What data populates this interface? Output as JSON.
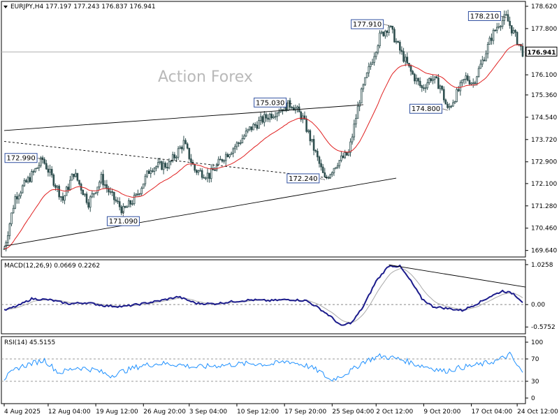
{
  "chart_data": {
    "type": "candlestick",
    "watermark": "Action Forex",
    "main": {
      "header": "EURJPY,H4  177.197 177.243 176.837 176.941",
      "current_price": 176.941,
      "current_price_label": "176.941",
      "ylim": [
        169.4,
        178.8
      ],
      "y_ticks": [
        {
          "value": 178.62,
          "label": "178.620"
        },
        {
          "value": 177.8,
          "label": "177.800"
        },
        {
          "value": 176.98,
          "label": "176.980"
        },
        {
          "value": 176.1,
          "label": "176.100"
        },
        {
          "value": 175.36,
          "label": "175.360"
        },
        {
          "value": 174.54,
          "label": "174.540"
        },
        {
          "value": 173.72,
          "label": "173.720"
        },
        {
          "value": 172.9,
          "label": "172.900"
        },
        {
          "value": 172.1,
          "label": "172.100"
        },
        {
          "value": 171.28,
          "label": "171.280"
        },
        {
          "value": 170.46,
          "label": "170.460"
        },
        {
          "value": 169.64,
          "label": "169.640"
        }
      ],
      "keypoints": [
        [
          0,
          169.7
        ],
        [
          6,
          171.6
        ],
        [
          16,
          172.5
        ],
        [
          21,
          172.99
        ],
        [
          27,
          172.2
        ],
        [
          32,
          171.5
        ],
        [
          38,
          172.5
        ],
        [
          46,
          171.4
        ],
        [
          53,
          172.3
        ],
        [
          58,
          171.7
        ],
        [
          65,
          171.09
        ],
        [
          72,
          171.6
        ],
        [
          80,
          172.7
        ],
        [
          90,
          172.8
        ],
        [
          98,
          173.6
        ],
        [
          104,
          172.6
        ],
        [
          112,
          172.4
        ],
        [
          120,
          173.1
        ],
        [
          128,
          173.6
        ],
        [
          134,
          174.1
        ],
        [
          142,
          174.5
        ],
        [
          152,
          174.9
        ],
        [
          157,
          175.03
        ],
        [
          163,
          174.5
        ],
        [
          170,
          173.2
        ],
        [
          175,
          172.24
        ],
        [
          182,
          172.9
        ],
        [
          188,
          173.2
        ],
        [
          194,
          175.2
        ],
        [
          200,
          176.5
        ],
        [
          205,
          177.5
        ],
        [
          210,
          177.91
        ],
        [
          216,
          177.0
        ],
        [
          222,
          176.2
        ],
        [
          228,
          175.6
        ],
        [
          233,
          176.0
        ],
        [
          238,
          175.7
        ],
        [
          242,
          174.8
        ],
        [
          247,
          175.4
        ],
        [
          252,
          176.0
        ],
        [
          256,
          175.8
        ],
        [
          261,
          176.6
        ],
        [
          266,
          177.5
        ],
        [
          270,
          178.0
        ],
        [
          274,
          178.21
        ],
        [
          279,
          177.5
        ],
        [
          283,
          176.941
        ]
      ],
      "annotations": [
        {
          "label": "172.990",
          "bar": 21,
          "price": 172.99,
          "side": "left"
        },
        {
          "label": "171.090",
          "bar": 65,
          "price": 171.09,
          "side": "below"
        },
        {
          "label": "175.030",
          "bar": 157,
          "price": 175.03,
          "side": "left"
        },
        {
          "label": "172.240",
          "bar": 175,
          "price": 172.24,
          "side": "left"
        },
        {
          "label": "177.910",
          "bar": 210,
          "price": 177.91,
          "side": "left"
        },
        {
          "label": "174.800",
          "bar": 242,
          "price": 174.8,
          "side": "left"
        },
        {
          "label": "178.210",
          "bar": 274,
          "price": 178.21,
          "side": "left"
        }
      ],
      "trendlines": [
        {
          "style": "solid",
          "from": [
            0,
            169.8
          ],
          "to": [
            214,
            172.3
          ]
        },
        {
          "style": "solid",
          "from": [
            0,
            174.05
          ],
          "to": [
            196,
            175.0
          ]
        },
        {
          "style": "dashed",
          "from": [
            0,
            173.65
          ],
          "to": [
            178,
            172.3
          ]
        }
      ]
    },
    "macd": {
      "header": "MACD(12,26,9) 0.0669 0.2262",
      "ylim": [
        -0.75,
        1.15
      ],
      "y_ticks": [
        {
          "value": 1.0258,
          "label": "1.0258"
        },
        {
          "value": 0.0,
          "label": "0.00"
        },
        {
          "value": -0.5752,
          "label": "-0.5752"
        }
      ],
      "keypoints": [
        [
          0,
          -0.15
        ],
        [
          8,
          -0.02
        ],
        [
          15,
          0.15
        ],
        [
          25,
          0.12
        ],
        [
          35,
          0.02
        ],
        [
          45,
          0.05
        ],
        [
          55,
          -0.03
        ],
        [
          65,
          -0.05
        ],
        [
          75,
          0.02
        ],
        [
          85,
          0.1
        ],
        [
          95,
          0.2
        ],
        [
          105,
          0.03
        ],
        [
          115,
          0.02
        ],
        [
          125,
          0.08
        ],
        [
          135,
          0.12
        ],
        [
          145,
          0.1
        ],
        [
          155,
          0.13
        ],
        [
          165,
          0.1
        ],
        [
          172,
          -0.1
        ],
        [
          178,
          -0.3
        ],
        [
          184,
          -0.55
        ],
        [
          190,
          -0.45
        ],
        [
          196,
          -0.05
        ],
        [
          203,
          0.6
        ],
        [
          210,
          1.0
        ],
        [
          216,
          0.98
        ],
        [
          222,
          0.6
        ],
        [
          228,
          0.15
        ],
        [
          234,
          -0.05
        ],
        [
          242,
          -0.1
        ],
        [
          250,
          -0.15
        ],
        [
          258,
          0.02
        ],
        [
          265,
          0.2
        ],
        [
          272,
          0.35
        ],
        [
          278,
          0.28
        ],
        [
          283,
          0.07
        ]
      ],
      "trendline": {
        "from": [
          210,
          1.02
        ],
        "to": [
          290,
          0.45
        ]
      }
    },
    "rsi": {
      "header": "RSI(14) 45.5155",
      "ylim": [
        0,
        100
      ],
      "y_ticks": [
        {
          "value": 100,
          "label": "100"
        },
        {
          "value": 70,
          "label": "70"
        },
        {
          "value": 30,
          "label": "30"
        },
        {
          "value": 0,
          "label": "0"
        }
      ],
      "levels": [
        70,
        30
      ],
      "keypoints": [
        [
          0,
          35
        ],
        [
          8,
          55
        ],
        [
          15,
          62
        ],
        [
          22,
          68
        ],
        [
          30,
          45
        ],
        [
          40,
          55
        ],
        [
          50,
          50
        ],
        [
          58,
          40
        ],
        [
          65,
          48
        ],
        [
          75,
          58
        ],
        [
          85,
          62
        ],
        [
          95,
          60
        ],
        [
          105,
          55
        ],
        [
          115,
          58
        ],
        [
          125,
          60
        ],
        [
          135,
          62
        ],
        [
          145,
          60
        ],
        [
          155,
          66
        ],
        [
          165,
          58
        ],
        [
          172,
          48
        ],
        [
          178,
          32
        ],
        [
          184,
          40
        ],
        [
          190,
          50
        ],
        [
          196,
          65
        ],
        [
          205,
          75
        ],
        [
          212,
          72
        ],
        [
          218,
          68
        ],
        [
          225,
          60
        ],
        [
          232,
          55
        ],
        [
          240,
          48
        ],
        [
          250,
          55
        ],
        [
          260,
          60
        ],
        [
          270,
          68
        ],
        [
          276,
          78
        ],
        [
          280,
          58
        ],
        [
          283,
          45.5
        ]
      ]
    },
    "x_ticks": [
      {
        "bar": 0,
        "label": "4 Aug 2025"
      },
      {
        "bar": 24,
        "label": "12 Aug 04:00"
      },
      {
        "bar": 50,
        "label": "19 Aug 12:00"
      },
      {
        "bar": 76,
        "label": "26 Aug 20:00"
      },
      {
        "bar": 101,
        "label": "3 Sep 04:00"
      },
      {
        "bar": 127,
        "label": "10 Sep 12:00"
      },
      {
        "bar": 153,
        "label": "17 Sep 20:00"
      },
      {
        "bar": 179,
        "label": "25 Sep 04:00"
      },
      {
        "bar": 203,
        "label": "2 Oct 12:00"
      },
      {
        "bar": 229,
        "label": "9 Oct 20:00"
      },
      {
        "bar": 255,
        "label": "17 Oct 04:00"
      },
      {
        "bar": 280,
        "label": "24 Oct 12:00"
      }
    ],
    "bar_count": 284,
    "colors": {
      "candle": "#2f4f4f",
      "ma": "#e02020",
      "macd": "#1c1c8c",
      "signal": "#aaaaaa",
      "rsi": "#1e90ff",
      "trend": "#000000",
      "label_border": "#3050a0"
    }
  }
}
